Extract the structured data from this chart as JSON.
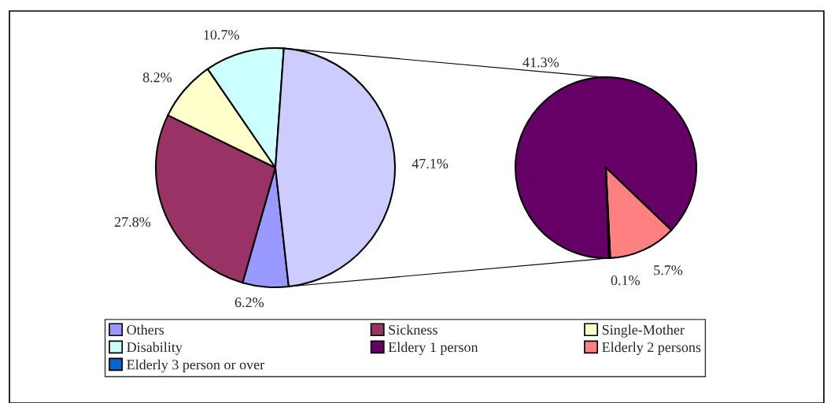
{
  "chart_data": [
    {
      "type": "pie",
      "categories": [
        "Others",
        "Sickness",
        "Single-Mother",
        "Disability",
        null
      ],
      "values": [
        6.2,
        27.8,
        8.2,
        10.7,
        47.1
      ],
      "colors": [
        "#9999ff",
        "#993366",
        "#ffffcc",
        "#ccffff",
        "#ccccff"
      ],
      "value_labels": [
        "6.2%",
        "27.8%",
        "8.2%",
        "10.7%",
        "47.1%"
      ],
      "legend": "bottom"
    },
    {
      "type": "pie",
      "categories": [
        "Eldery 1 person",
        "Elderly 2 persons",
        "Elderly 3 person or over"
      ],
      "values": [
        41.3,
        5.7,
        0.1
      ],
      "colors": [
        "#660066",
        "#ff8080",
        "#0066cc"
      ],
      "value_labels": [
        "41.3%",
        "5.7%",
        "0.1%"
      ],
      "legend": "bottom"
    }
  ]
}
